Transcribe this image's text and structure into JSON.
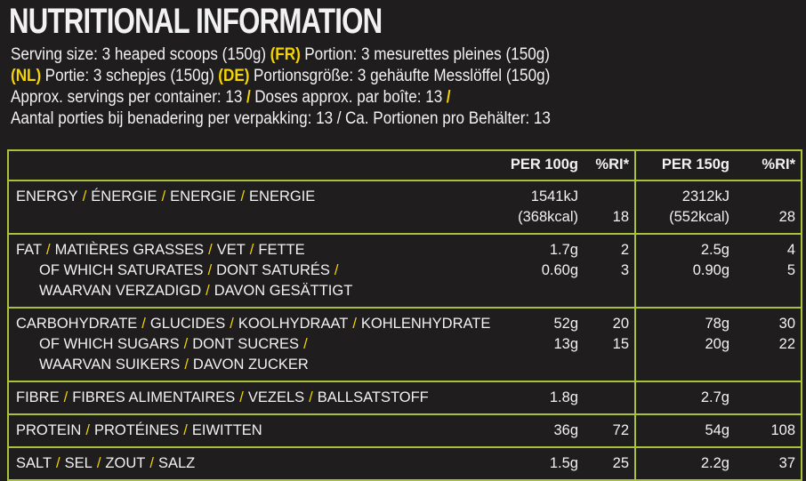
{
  "title": "NUTRITIONAL INFORMATION",
  "serving_lines": [
    [
      {
        "text": "Serving size: 3 heaped scoops (150g)",
        "highlight": false
      },
      {
        "text": "(FR)",
        "highlight": true
      },
      {
        "text": "Portion: 3 mesurettes pleines (150g)",
        "highlight": false
      }
    ],
    [
      {
        "text": "(NL)",
        "highlight": true
      },
      {
        "text": "Portie: 3 schepjes (150g)",
        "highlight": false
      },
      {
        "text": "(DE)",
        "highlight": true
      },
      {
        "text": "Portionsgröße: 3 gehäufte Messlöffel (150g)",
        "highlight": false
      }
    ],
    [
      {
        "text": "Approx. servings per container: 13",
        "highlight": false
      },
      {
        "text": "/",
        "highlight": true
      },
      {
        "text": "Doses approx. par boîte: 13",
        "highlight": false
      },
      {
        "text": "/",
        "highlight": true
      }
    ],
    [
      {
        "text": "Aantal porties bij benadering per verpakking: 13",
        "highlight": false
      },
      {
        "text": "/",
        "highlight": false
      },
      {
        "text": "Ca. Portionen pro Behälter: 13",
        "highlight": false
      }
    ]
  ],
  "separator": "/",
  "table": {
    "columns": [
      "PER 100g",
      "%RI*",
      "PER 150g",
      "%RI*"
    ],
    "rows": [
      {
        "items": [
          {
            "lines": [
              [
                "ENERGY",
                "ÉNERGIE",
                "ENERGIE",
                "ENERGIE"
              ]
            ],
            "per100": [
              "1541kJ",
              "(368kcal)"
            ],
            "ri100": 18,
            "per150": [
              "2312kJ",
              "(552kcal)"
            ],
            "ri150": 28
          }
        ]
      },
      {
        "items": [
          {
            "lines": [
              [
                "FAT",
                "MATIÈRES GRASSES",
                "VET",
                "FETTE"
              ]
            ],
            "per100": "1.7g",
            "ri100": 2,
            "per150": "2.5g",
            "ri150": 4
          },
          {
            "lines": [
              [
                "OF WHICH SATURATES",
                "DONT SATURÉS"
              ],
              [
                "WAARVAN VERZADIGD",
                "DAVON GESÄTTIGT"
              ]
            ],
            "per100": "0.60g",
            "ri100": 3,
            "per150": "0.90g",
            "ri150": 5
          }
        ]
      },
      {
        "items": [
          {
            "lines": [
              [
                "CARBOHYDRATE",
                "GLUCIDES",
                "KOOLHYDRAAT",
                "KOHLENHYDRATE"
              ]
            ],
            "per100": "52g",
            "ri100": 20,
            "per150": "78g",
            "ri150": 30
          },
          {
            "lines": [
              [
                "OF WHICH SUGARS",
                "DONT SUCRES"
              ],
              [
                "WAARVAN SUIKERS",
                "DAVON ZUCKER"
              ]
            ],
            "per100": "13g",
            "ri100": 15,
            "per150": "20g",
            "ri150": 22
          }
        ]
      },
      {
        "items": [
          {
            "lines": [
              [
                "FIBRE",
                "FIBRES ALIMENTAIRES",
                "VEZELS",
                "BALLSATSTOFF"
              ]
            ],
            "per100": "1.8g",
            "per150": "2.7g"
          }
        ]
      },
      {
        "items": [
          {
            "lines": [
              [
                "PROTEIN",
                "PROTÉINES",
                "EIWITTEN"
              ]
            ],
            "per100": "36g",
            "ri100": 72,
            "per150": "54g",
            "ri150": 108
          }
        ]
      },
      {
        "items": [
          {
            "lines": [
              [
                "SALT",
                "SEL",
                "ZOUT",
                "SALZ"
              ]
            ],
            "per100": "1.5g",
            "ri100": 25,
            "per150": "2.2g",
            "ri150": 37
          }
        ]
      }
    ]
  }
}
